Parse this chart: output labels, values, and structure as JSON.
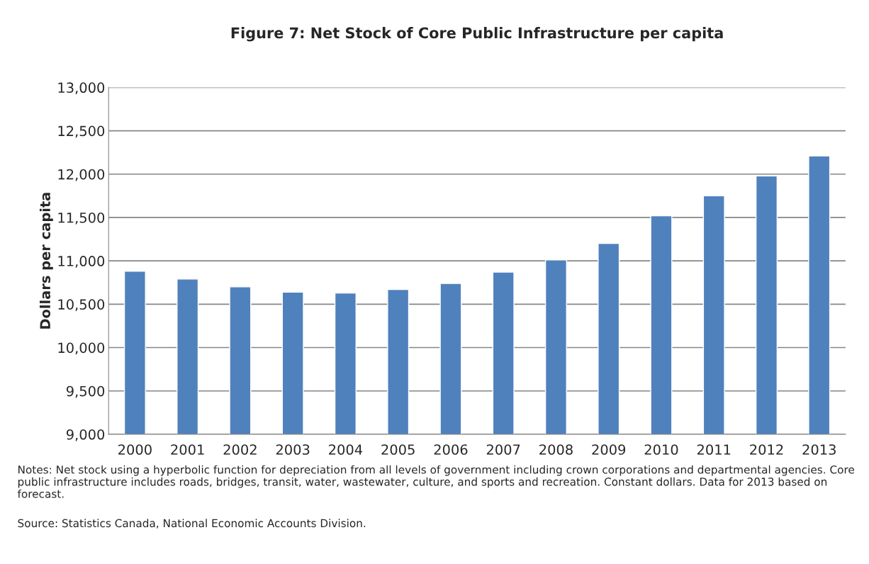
{
  "chart_data": {
    "type": "bar",
    "title": "Figure 7: Net Stock of Core Public Infrastructure per capita",
    "ylabel": "Dollars per capita",
    "categories": [
      "2000",
      "2001",
      "2002",
      "2003",
      "2004",
      "2005",
      "2006",
      "2007",
      "2008",
      "2009",
      "2010",
      "2011",
      "2012",
      "2013"
    ],
    "values": [
      10880,
      10790,
      10700,
      10640,
      10630,
      10670,
      10740,
      10870,
      11010,
      11200,
      11520,
      11750,
      11980,
      12210
    ],
    "color": "#4f81bd",
    "ylim": [
      9000,
      13000
    ],
    "yticks": [
      {
        "value": 9000,
        "label": "9,000"
      },
      {
        "value": 9500,
        "label": "9,500"
      },
      {
        "value": 10000,
        "label": "10,000"
      },
      {
        "value": 10500,
        "label": "10,500"
      },
      {
        "value": 11000,
        "label": "11,000"
      },
      {
        "value": 11500,
        "label": "11,500"
      },
      {
        "value": 12000,
        "label": "12,000"
      },
      {
        "value": 12500,
        "label": "12,500"
      },
      {
        "value": 13000,
        "label": "13,000"
      }
    ],
    "grid": "y",
    "legend": false,
    "annotations": [
      "Notes: Net stock using a hyperbolic function for depreciation from all levels of government including crown corporations and departmental agencies. Core public infrastructure includes roads, bridges, transit, water, wastewater, culture, and sports and recreation. Constant dollars. Data for 2013 based on forecast.",
      "Source: Statistics Canada, National Economic Accounts Division."
    ]
  }
}
